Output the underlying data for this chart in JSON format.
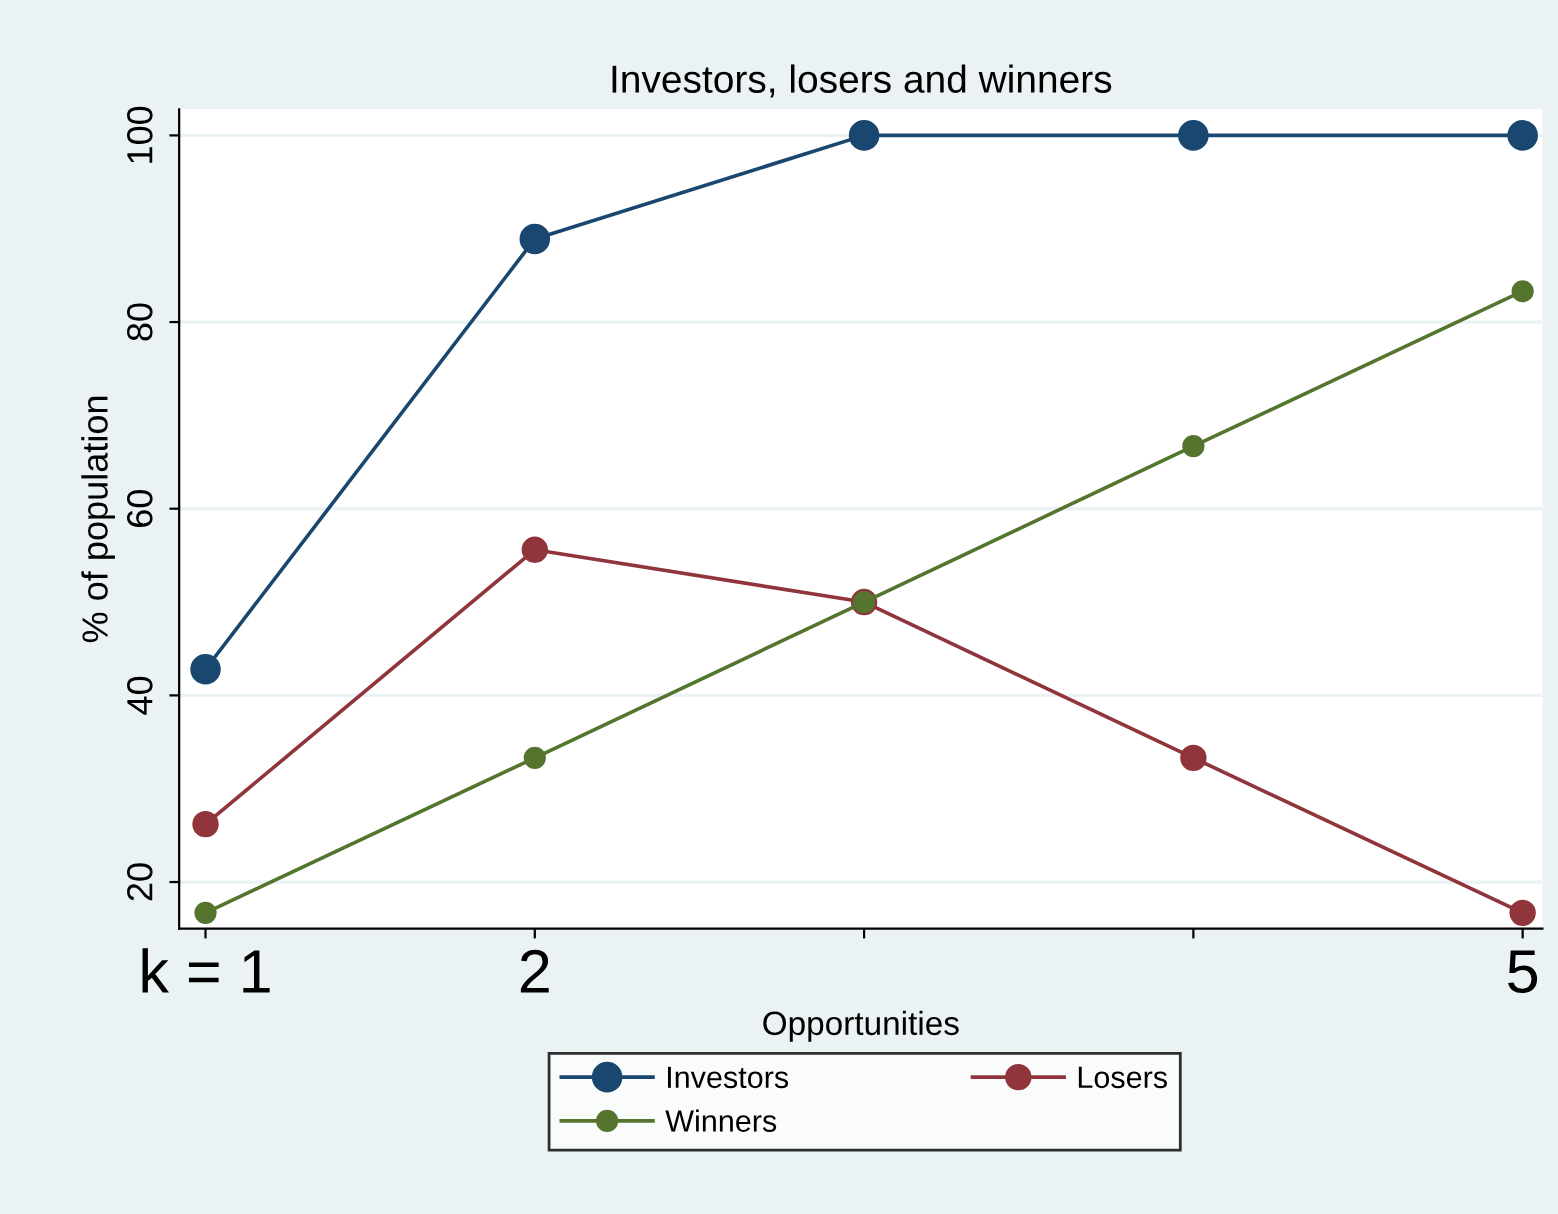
{
  "chart_data": {
    "type": "line",
    "title": "Investors, losers and winners",
    "xlabel": "Opportunities",
    "ylabel": "% of population",
    "x": [
      1,
      2,
      3,
      4,
      5
    ],
    "series": [
      {
        "name": "Investors",
        "color": "#1a476f",
        "values": [
          42.8,
          88.9,
          100,
          100,
          100
        ]
      },
      {
        "name": "Losers",
        "color": "#90353b",
        "values": [
          26.2,
          55.6,
          50,
          33.3,
          16.7
        ]
      },
      {
        "name": "Winners",
        "color": "#55752f",
        "values": [
          16.7,
          33.3,
          50,
          66.7,
          83.3
        ]
      }
    ],
    "xlim": [
      0.92,
      5.06
    ],
    "ylim": [
      15,
      102.8
    ],
    "xticks": [
      {
        "value": 1,
        "label": "k = 1"
      },
      2,
      {
        "value": 3,
        "label": null
      },
      {
        "value": 4,
        "label": null
      },
      5
    ],
    "yticks": [
      20,
      40,
      60,
      80,
      100
    ],
    "grid": "y",
    "legend": "bottom",
    "marker": "circle",
    "line_style": "solid"
  }
}
